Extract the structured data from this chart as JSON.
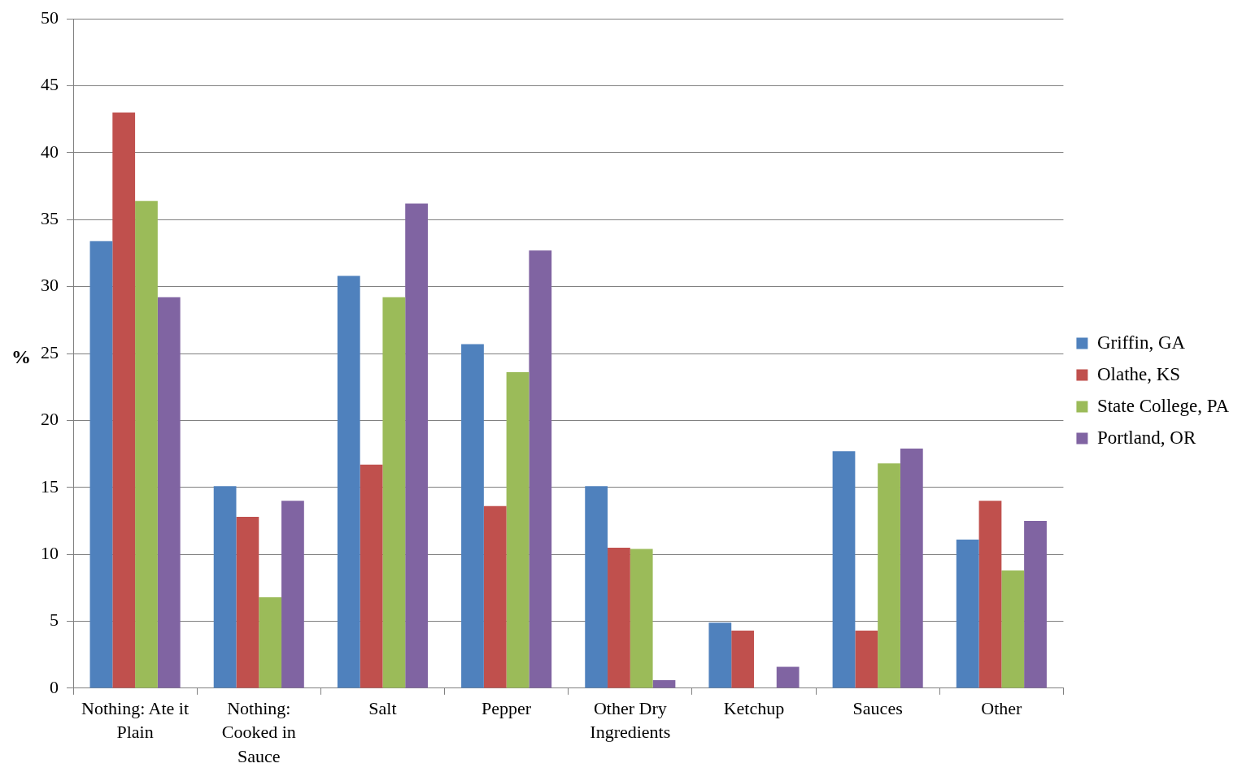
{
  "chart_data": {
    "type": "bar",
    "ylabel": "%",
    "categories": [
      "Nothing: Ate it Plain",
      "Nothing: Cooked in Sauce",
      "Salt",
      "Pepper",
      "Other Dry Ingredients",
      "Ketchup",
      "Sauces",
      "Other"
    ],
    "series": [
      {
        "name": "Griffin, GA",
        "color": "#4f81bd",
        "values": [
          33.4,
          15.1,
          30.8,
          25.7,
          15.1,
          4.9,
          17.7,
          11.1
        ]
      },
      {
        "name": "Olathe, KS",
        "color": "#c0504d",
        "values": [
          43.0,
          12.8,
          16.7,
          13.6,
          10.5,
          4.3,
          4.3,
          14.0
        ]
      },
      {
        "name": "State College, PA",
        "color": "#9bbb59",
        "values": [
          36.4,
          6.8,
          29.2,
          23.6,
          10.4,
          0,
          16.8,
          8.8
        ]
      },
      {
        "name": "Portland, OR",
        "color": "#8064a2",
        "values": [
          29.2,
          14.0,
          36.2,
          32.7,
          0.6,
          1.6,
          17.9,
          12.5
        ]
      }
    ],
    "ylim": [
      0,
      50
    ],
    "yticks": [
      0,
      5,
      10,
      15,
      20,
      25,
      30,
      35,
      40,
      45,
      50
    ],
    "grid": "y",
    "legend": "right"
  }
}
